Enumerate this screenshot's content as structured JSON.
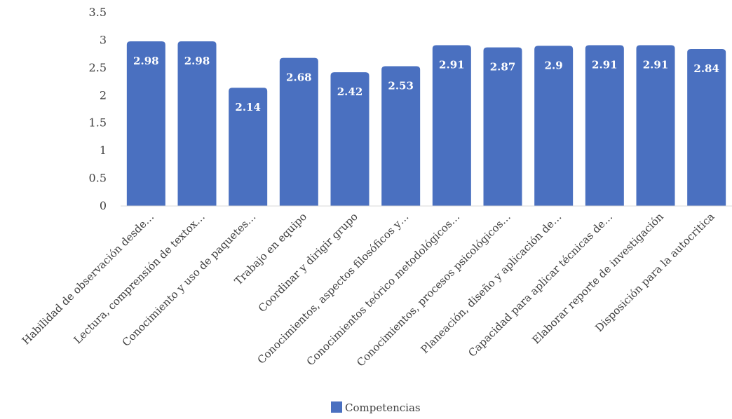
{
  "chart_data": {
    "type": "bar",
    "categories": [
      "Habilidad de observación desde…",
      "Lectura, comprensión de textox…",
      "Conocimiento y uso de paquetes…",
      "Trabajo en equipo",
      "Coordinar y dirigir grupo",
      "Conocimientos, aspectos filosóficos y…",
      "Conocimientos teórico metodológicos…",
      "Conocimientos, procesos psicológicos…",
      "Planeación, diseño y aplicación de…",
      "Capacidad para aplicar técnicas de…",
      "Elaborar reporte de investigación",
      "Disposición para la autocritica"
    ],
    "series": [
      {
        "name": "Competencias",
        "values": [
          2.98,
          2.98,
          2.14,
          2.68,
          2.42,
          2.53,
          2.91,
          2.87,
          2.9,
          2.91,
          2.91,
          2.84
        ],
        "color": "#4a70c0"
      }
    ],
    "data_labels": [
      "2.98",
      "2.98",
      "2.14",
      "2.68",
      "2.42",
      "2.53",
      "2.91",
      "2.87",
      "2.9",
      "2.91",
      "2.91",
      "2.84"
    ],
    "y_ticks": [
      "0",
      "0.5",
      "1",
      "1.5",
      "2",
      "2.5",
      "3",
      "3.5"
    ],
    "ylim": [
      0,
      3.5
    ],
    "grid": false,
    "legend_position": "bottom-center"
  }
}
